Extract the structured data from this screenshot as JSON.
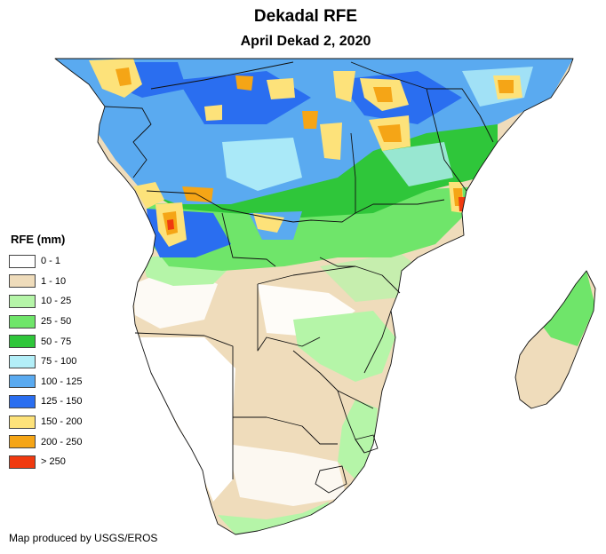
{
  "title": "Dekadal RFE",
  "subtitle": "April Dekad 2, 2020",
  "legend": {
    "title": "RFE (mm)",
    "classes": [
      {
        "label": "0 - 1",
        "color": "#ffffff"
      },
      {
        "label": "1 - 10",
        "color": "#efdcbb"
      },
      {
        "label": "10 - 25",
        "color": "#b5f5a8"
      },
      {
        "label": "25 - 50",
        "color": "#6fe56a"
      },
      {
        "label": "50 - 75",
        "color": "#2fc63a"
      },
      {
        "label": "75 - 100",
        "color": "#b3eff8"
      },
      {
        "label": "100 - 125",
        "color": "#5aaaf0"
      },
      {
        "label": "125 - 150",
        "color": "#2a6ef0"
      },
      {
        "label": "150 - 200",
        "color": "#fde27a"
      },
      {
        "label": "200 - 250",
        "color": "#f5a516"
      },
      {
        "label": "> 250",
        "color": "#f03a10"
      }
    ]
  },
  "credit": "Map produced by USGS/EROS"
}
